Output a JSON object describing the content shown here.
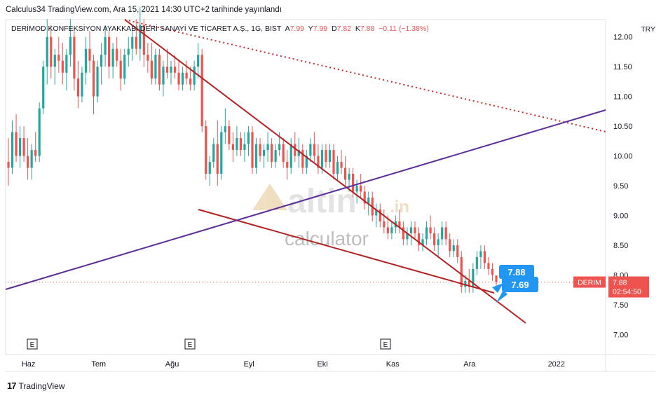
{
  "header": {
    "publisher": "Calculus34 TradingView.com, Ara 15, 2021 14:30 UTC+2 tarihinde yayınlandı"
  },
  "legend": {
    "symbol": "DERİMOD KONFEKSİYON AYAKKABI DERİ SANAYİ VE TİCARET A.Ş., 1G, BIST",
    "open_label": "A",
    "open": "7.99",
    "high_label": "Y",
    "high": "7.99",
    "low_label": "D",
    "low": "7.82",
    "close_label": "K",
    "close": "7.88",
    "change": "−0.11 (−1.38%)"
  },
  "currency": "TRY",
  "price_tag": {
    "ticker": "DERIM",
    "price": "7.88",
    "countdown": "02:54:50"
  },
  "callouts": [
    {
      "text": "7.88"
    },
    {
      "text": "7.69"
    }
  ],
  "events": [
    "E",
    "E",
    "E"
  ],
  "watermark": {
    "brand": "altin",
    "tld": ".in",
    "sub": "calculator"
  },
  "footer": {
    "brand": "TradingView",
    "logo": "17"
  },
  "colors": {
    "up": "#26a69a",
    "down": "#ef5350",
    "trend_down": "#b22222",
    "trend_up": "#5b2c9a",
    "tag_bg": "#ef5350",
    "callout_bg": "#2196f3"
  },
  "chart_data": {
    "type": "candlestick",
    "title": "DERİMOD KONFEKSİYON AYAKKABI DERİ SANAYİ VE TİCARET A.Ş., 1G, BIST",
    "y_axis": {
      "ticks": [
        "12.00",
        "11.50",
        "11.00",
        "10.50",
        "10.00",
        "9.50",
        "9.00",
        "8.50",
        "8.00",
        "7.50",
        "7.00"
      ],
      "ylim": [
        6.8,
        12.6
      ]
    },
    "x_axis": {
      "ticks": [
        "Haz",
        "Tem",
        "Ağu",
        "Eyl",
        "Eki",
        "Kas",
        "Ara",
        "2022"
      ]
    },
    "bars": [
      [
        9.9,
        10.3,
        9.5,
        9.8
      ],
      [
        9.8,
        10.6,
        9.7,
        10.4
      ],
      [
        10.4,
        10.7,
        9.9,
        10.0
      ],
      [
        10.0,
        10.5,
        9.8,
        10.3
      ],
      [
        10.3,
        10.5,
        9.9,
        10.0
      ],
      [
        10.0,
        10.3,
        9.6,
        9.8
      ],
      [
        9.8,
        10.2,
        9.6,
        10.1
      ],
      [
        10.1,
        10.4,
        9.9,
        10.0
      ],
      [
        10.0,
        10.9,
        9.9,
        10.8
      ],
      [
        10.8,
        11.6,
        10.7,
        11.5
      ],
      [
        11.5,
        12.3,
        11.2,
        12.0
      ],
      [
        12.0,
        12.2,
        11.3,
        11.5
      ],
      [
        11.5,
        11.8,
        11.2,
        11.7
      ],
      [
        11.7,
        12.0,
        11.4,
        11.6
      ],
      [
        11.6,
        11.9,
        11.2,
        11.4
      ],
      [
        11.4,
        11.8,
        11.1,
        11.7
      ],
      [
        11.7,
        12.3,
        11.5,
        12.0
      ],
      [
        12.0,
        12.1,
        11.1,
        11.3
      ],
      [
        11.3,
        11.6,
        10.8,
        11.0
      ],
      [
        11.0,
        11.5,
        10.9,
        11.4
      ],
      [
        11.4,
        12.0,
        11.2,
        11.8
      ],
      [
        11.8,
        12.1,
        11.4,
        11.6
      ],
      [
        11.6,
        11.7,
        10.7,
        11.0
      ],
      [
        11.0,
        11.6,
        10.9,
        11.5
      ],
      [
        11.5,
        11.9,
        11.2,
        11.7
      ],
      [
        11.7,
        12.2,
        11.5,
        12.0
      ],
      [
        12.0,
        12.1,
        11.3,
        11.5
      ],
      [
        11.5,
        11.9,
        11.3,
        11.8
      ],
      [
        11.8,
        12.0,
        11.5,
        11.6
      ],
      [
        11.6,
        11.8,
        11.1,
        11.3
      ],
      [
        11.3,
        11.8,
        11.2,
        11.7
      ],
      [
        11.7,
        12.0,
        11.5,
        11.8
      ],
      [
        11.8,
        12.1,
        11.6,
        12.0
      ],
      [
        12.0,
        12.3,
        11.7,
        11.8
      ],
      [
        11.8,
        12.5,
        11.6,
        12.2
      ],
      [
        12.2,
        12.3,
        11.5,
        11.7
      ],
      [
        11.7,
        11.9,
        11.4,
        11.6
      ],
      [
        11.6,
        11.9,
        11.2,
        11.3
      ],
      [
        11.3,
        11.8,
        11.2,
        11.7
      ],
      [
        11.7,
        11.8,
        11.1,
        11.2
      ],
      [
        11.2,
        11.6,
        11.0,
        11.5
      ],
      [
        11.5,
        11.8,
        11.3,
        11.4
      ],
      [
        11.4,
        11.6,
        11.2,
        11.5
      ],
      [
        11.5,
        11.7,
        11.3,
        11.4
      ],
      [
        11.4,
        11.6,
        11.1,
        11.2
      ],
      [
        11.2,
        11.5,
        11.1,
        11.4
      ],
      [
        11.4,
        11.6,
        11.2,
        11.3
      ],
      [
        11.3,
        11.5,
        11.1,
        11.2
      ],
      [
        11.2,
        11.6,
        11.1,
        11.5
      ],
      [
        11.5,
        11.9,
        11.3,
        11.7
      ],
      [
        11.7,
        11.8,
        10.4,
        10.5
      ],
      [
        10.5,
        10.6,
        9.6,
        9.7
      ],
      [
        9.7,
        10.0,
        9.5,
        9.9
      ],
      [
        9.9,
        10.3,
        9.8,
        10.2
      ],
      [
        10.2,
        10.6,
        9.5,
        9.7
      ],
      [
        9.7,
        10.5,
        9.6,
        10.4
      ],
      [
        10.4,
        10.8,
        10.2,
        10.5
      ],
      [
        10.5,
        10.6,
        10.1,
        10.2
      ],
      [
        10.2,
        10.4,
        9.9,
        10.1
      ],
      [
        10.1,
        10.5,
        10.0,
        10.3
      ],
      [
        10.3,
        10.4,
        10.0,
        10.1
      ],
      [
        10.1,
        10.4,
        9.9,
        10.2
      ],
      [
        10.2,
        10.5,
        10.0,
        10.4
      ],
      [
        10.4,
        10.5,
        9.7,
        9.8
      ],
      [
        9.8,
        10.3,
        9.7,
        10.2
      ],
      [
        10.2,
        10.3,
        9.9,
        10.0
      ],
      [
        10.0,
        10.2,
        9.8,
        10.1
      ],
      [
        10.1,
        10.4,
        9.9,
        10.2
      ],
      [
        10.2,
        10.3,
        9.8,
        9.9
      ],
      [
        9.9,
        10.2,
        9.8,
        10.1
      ],
      [
        10.1,
        10.4,
        10.0,
        10.2
      ],
      [
        10.2,
        10.3,
        9.8,
        9.9
      ],
      [
        9.9,
        10.1,
        9.6,
        9.8
      ],
      [
        9.8,
        10.3,
        9.7,
        10.2
      ],
      [
        10.2,
        10.4,
        9.9,
        10.0
      ],
      [
        10.0,
        10.3,
        9.8,
        10.1
      ],
      [
        10.1,
        10.2,
        9.7,
        9.8
      ],
      [
        9.8,
        10.1,
        9.7,
        10.0
      ],
      [
        10.0,
        10.3,
        9.9,
        10.2
      ],
      [
        10.2,
        10.4,
        9.9,
        10.0
      ],
      [
        10.0,
        10.2,
        9.7,
        9.8
      ],
      [
        9.8,
        10.2,
        9.7,
        10.1
      ],
      [
        10.1,
        10.2,
        9.8,
        9.9
      ],
      [
        9.9,
        10.2,
        9.8,
        10.1
      ],
      [
        10.1,
        10.2,
        9.6,
        9.7
      ],
      [
        9.7,
        10.0,
        9.6,
        9.9
      ],
      [
        9.9,
        10.1,
        9.7,
        9.8
      ],
      [
        9.8,
        10.0,
        9.5,
        9.6
      ],
      [
        9.6,
        9.8,
        9.4,
        9.7
      ],
      [
        9.7,
        9.8,
        9.3,
        9.4
      ],
      [
        9.4,
        9.6,
        9.2,
        9.5
      ],
      [
        9.5,
        9.7,
        9.3,
        9.4
      ],
      [
        9.4,
        9.5,
        9.1,
        9.2
      ],
      [
        9.2,
        9.4,
        9.0,
        9.3
      ],
      [
        9.3,
        9.4,
        8.9,
        9.0
      ],
      [
        9.0,
        9.2,
        8.8,
        9.1
      ],
      [
        9.1,
        9.2,
        8.8,
        8.9
      ],
      [
        8.9,
        9.1,
        8.7,
        8.8
      ],
      [
        8.8,
        9.0,
        8.6,
        8.7
      ],
      [
        8.7,
        8.9,
        8.6,
        8.8
      ],
      [
        8.8,
        9.0,
        8.7,
        8.9
      ],
      [
        8.9,
        9.1,
        8.7,
        8.8
      ],
      [
        8.8,
        8.9,
        8.5,
        8.6
      ],
      [
        8.6,
        8.8,
        8.5,
        8.7
      ],
      [
        8.7,
        8.9,
        8.5,
        8.8
      ],
      [
        8.8,
        8.9,
        8.6,
        8.7
      ],
      [
        8.7,
        8.8,
        8.4,
        8.5
      ],
      [
        8.5,
        8.7,
        8.4,
        8.6
      ],
      [
        8.6,
        8.9,
        8.5,
        8.8
      ],
      [
        8.8,
        9.0,
        8.6,
        8.7
      ],
      [
        8.7,
        8.8,
        8.4,
        8.5
      ],
      [
        8.5,
        8.7,
        8.3,
        8.6
      ],
      [
        8.6,
        8.9,
        8.5,
        8.8
      ],
      [
        8.8,
        8.9,
        8.5,
        8.6
      ],
      [
        8.6,
        8.7,
        8.3,
        8.4
      ],
      [
        8.4,
        8.6,
        8.3,
        8.5
      ],
      [
        8.5,
        8.6,
        8.2,
        8.3
      ],
      [
        8.3,
        8.4,
        7.7,
        7.8
      ],
      [
        7.8,
        8.0,
        7.7,
        7.9
      ],
      [
        7.9,
        8.1,
        7.7,
        7.8
      ],
      [
        7.8,
        8.2,
        7.7,
        8.1
      ],
      [
        8.1,
        8.4,
        8.0,
        8.3
      ],
      [
        8.3,
        8.5,
        8.1,
        8.4
      ],
      [
        8.4,
        8.5,
        8.1,
        8.2
      ],
      [
        8.2,
        8.3,
        8.0,
        8.1
      ],
      [
        8.1,
        8.2,
        7.9,
        8.0
      ],
      [
        7.99,
        7.99,
        7.82,
        7.88
      ]
    ],
    "drawings": [
      {
        "name": "falling-trend-top",
        "from": [
          "Tem",
          12.4
        ],
        "to": [
          "after Ara",
          7.3
        ],
        "color": "#b22222",
        "style": "solid"
      },
      {
        "name": "falling-trend-bottom",
        "from": [
          "Ağu",
          9.3
        ],
        "to": [
          "Ara",
          7.9
        ],
        "color": "#b22222",
        "style": "solid"
      },
      {
        "name": "dotted-resistance",
        "from": [
          "Tem",
          12.3
        ],
        "to": [
          "right edge",
          10.7
        ],
        "color": "#c62828",
        "style": "dotted"
      },
      {
        "name": "rising-support",
        "from": [
          "left edge",
          7.95
        ],
        "to": [
          "right edge",
          11.1
        ],
        "color": "#5b2c9a",
        "style": "solid"
      }
    ],
    "last_price": 7.88,
    "grid": false
  }
}
